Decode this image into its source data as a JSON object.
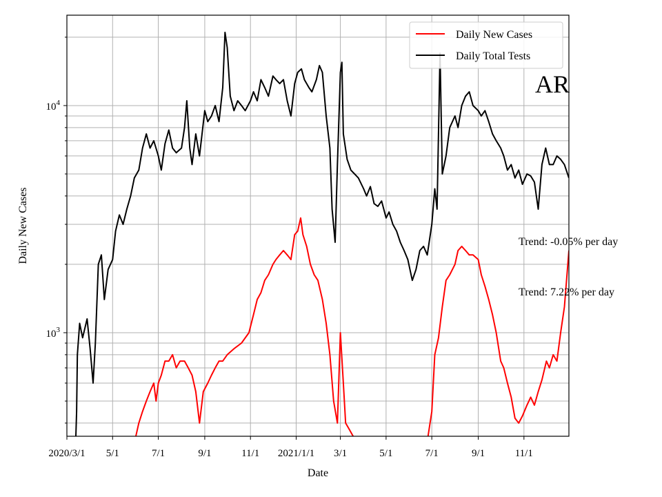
{
  "chart_data": {
    "type": "line",
    "xlabel": "Date",
    "ylabel": "Daily New Cases",
    "y_scale": "log",
    "ylim": [
      350,
      25000
    ],
    "xlim": [
      "2020-03-01",
      "2021-12-31"
    ],
    "grid": true,
    "legend_position": "top-right",
    "x_tick_labels": [
      {
        "date": "2020-03-01",
        "label": "2020/3/1"
      },
      {
        "date": "2020-05-01",
        "label": "5/1"
      },
      {
        "date": "2020-07-01",
        "label": "7/1"
      },
      {
        "date": "2020-09-01",
        "label": "9/1"
      },
      {
        "date": "2020-11-01",
        "label": "11/1"
      },
      {
        "date": "2021-01-01",
        "label": "2021/1/1"
      },
      {
        "date": "2021-03-01",
        "label": "3/1"
      },
      {
        "date": "2021-05-01",
        "label": "5/1"
      },
      {
        "date": "2021-07-01",
        "label": "7/1"
      },
      {
        "date": "2021-09-01",
        "label": "9/1"
      },
      {
        "date": "2021-11-01",
        "label": "11/1"
      }
    ],
    "y_tick_labels": [
      {
        "value": 1000,
        "base": "10",
        "exp": "3"
      },
      {
        "value": 10000,
        "base": "10",
        "exp": "4"
      }
    ],
    "annotations": {
      "state": "AR",
      "trend_tests": "Trend: -0.05% per day",
      "trend_cases": "Trend: 7.22% per day"
    },
    "series": [
      {
        "name": "Daily New Cases",
        "color": "#ff0000",
        "points": [
          [
            "2020-06-01",
            350
          ],
          [
            "2020-06-05",
            400
          ],
          [
            "2020-06-10",
            450
          ],
          [
            "2020-06-15",
            500
          ],
          [
            "2020-06-20",
            550
          ],
          [
            "2020-06-25",
            600
          ],
          [
            "2020-06-28",
            500
          ],
          [
            "2020-07-01",
            600
          ],
          [
            "2020-07-05",
            650
          ],
          [
            "2020-07-10",
            750
          ],
          [
            "2020-07-15",
            750
          ],
          [
            "2020-07-20",
            800
          ],
          [
            "2020-07-25",
            700
          ],
          [
            "2020-07-30",
            750
          ],
          [
            "2020-08-05",
            750
          ],
          [
            "2020-08-10",
            700
          ],
          [
            "2020-08-15",
            650
          ],
          [
            "2020-08-20",
            550
          ],
          [
            "2020-08-25",
            400
          ],
          [
            "2020-08-30",
            550
          ],
          [
            "2020-09-05",
            600
          ],
          [
            "2020-09-10",
            650
          ],
          [
            "2020-09-15",
            700
          ],
          [
            "2020-09-20",
            750
          ],
          [
            "2020-09-25",
            750
          ],
          [
            "2020-10-01",
            800
          ],
          [
            "2020-10-10",
            850
          ],
          [
            "2020-10-20",
            900
          ],
          [
            "2020-10-30",
            1000
          ],
          [
            "2020-11-05",
            1200
          ],
          [
            "2020-11-10",
            1400
          ],
          [
            "2020-11-15",
            1500
          ],
          [
            "2020-11-20",
            1700
          ],
          [
            "2020-11-25",
            1800
          ],
          [
            "2020-12-01",
            2000
          ],
          [
            "2020-12-05",
            2100
          ],
          [
            "2020-12-10",
            2200
          ],
          [
            "2020-12-15",
            2300
          ],
          [
            "2020-12-20",
            2200
          ],
          [
            "2020-12-25",
            2100
          ],
          [
            "2020-12-30",
            2700
          ],
          [
            "2021-01-03",
            2800
          ],
          [
            "2021-01-07",
            3200
          ],
          [
            "2021-01-10",
            2700
          ],
          [
            "2021-01-15",
            2400
          ],
          [
            "2021-01-20",
            2000
          ],
          [
            "2021-01-25",
            1800
          ],
          [
            "2021-01-30",
            1700
          ],
          [
            "2021-02-05",
            1400
          ],
          [
            "2021-02-10",
            1100
          ],
          [
            "2021-02-15",
            800
          ],
          [
            "2021-02-20",
            500
          ],
          [
            "2021-02-25",
            400
          ],
          [
            "2021-03-01",
            1000
          ],
          [
            "2021-03-05",
            600
          ],
          [
            "2021-03-08",
            400
          ],
          [
            "2021-03-12",
            380
          ],
          [
            "2021-03-18",
            350
          ],
          null,
          [
            "2021-06-26",
            350
          ],
          [
            "2021-07-01",
            450
          ],
          [
            "2021-07-05",
            800
          ],
          [
            "2021-07-10",
            950
          ],
          [
            "2021-07-15",
            1300
          ],
          [
            "2021-07-20",
            1700
          ],
          [
            "2021-07-25",
            1800
          ],
          [
            "2021-08-01",
            2000
          ],
          [
            "2021-08-05",
            2300
          ],
          [
            "2021-08-10",
            2400
          ],
          [
            "2021-08-15",
            2300
          ],
          [
            "2021-08-20",
            2200
          ],
          [
            "2021-08-25",
            2200
          ],
          [
            "2021-09-01",
            2100
          ],
          [
            "2021-09-05",
            1800
          ],
          [
            "2021-09-10",
            1600
          ],
          [
            "2021-09-15",
            1400
          ],
          [
            "2021-09-20",
            1200
          ],
          [
            "2021-09-25",
            1000
          ],
          [
            "2021-10-01",
            750
          ],
          [
            "2021-10-05",
            700
          ],
          [
            "2021-10-10",
            600
          ],
          [
            "2021-10-15",
            520
          ],
          [
            "2021-10-20",
            420
          ],
          [
            "2021-10-25",
            400
          ],
          [
            "2021-10-30",
            430
          ],
          [
            "2021-11-05",
            480
          ],
          [
            "2021-11-10",
            520
          ],
          [
            "2021-11-15",
            480
          ],
          [
            "2021-11-20",
            550
          ],
          [
            "2021-11-25",
            620
          ],
          [
            "2021-12-01",
            750
          ],
          [
            "2021-12-05",
            700
          ],
          [
            "2021-12-10",
            800
          ],
          [
            "2021-12-15",
            750
          ],
          [
            "2021-12-20",
            1000
          ],
          [
            "2021-12-25",
            1300
          ],
          [
            "2021-12-31",
            2300
          ]
        ]
      },
      {
        "name": "Daily Total Tests",
        "color": "#000000",
        "points": [
          [
            "2020-03-13",
            350
          ],
          [
            "2020-03-14",
            450
          ],
          [
            "2020-03-15",
            800
          ],
          [
            "2020-03-18",
            1100
          ],
          [
            "2020-03-22",
            950
          ],
          [
            "2020-03-28",
            1150
          ],
          [
            "2020-04-01",
            850
          ],
          [
            "2020-04-05",
            600
          ],
          [
            "2020-04-08",
            900
          ],
          [
            "2020-04-12",
            2000
          ],
          [
            "2020-04-16",
            2200
          ],
          [
            "2020-04-20",
            1400
          ],
          [
            "2020-04-25",
            1900
          ],
          [
            "2020-05-01",
            2100
          ],
          [
            "2020-05-05",
            2800
          ],
          [
            "2020-05-10",
            3300
          ],
          [
            "2020-05-15",
            3000
          ],
          [
            "2020-05-20",
            3500
          ],
          [
            "2020-05-25",
            4000
          ],
          [
            "2020-05-30",
            4800
          ],
          [
            "2020-06-05",
            5200
          ],
          [
            "2020-06-10",
            6500
          ],
          [
            "2020-06-15",
            7500
          ],
          [
            "2020-06-20",
            6500
          ],
          [
            "2020-06-25",
            7000
          ],
          [
            "2020-07-01",
            6000
          ],
          [
            "2020-07-05",
            5200
          ],
          [
            "2020-07-10",
            6800
          ],
          [
            "2020-07-15",
            7800
          ],
          [
            "2020-07-20",
            6500
          ],
          [
            "2020-07-25",
            6200
          ],
          [
            "2020-08-01",
            6500
          ],
          [
            "2020-08-05",
            8000
          ],
          [
            "2020-08-08",
            10500
          ],
          [
            "2020-08-12",
            6500
          ],
          [
            "2020-08-15",
            5500
          ],
          [
            "2020-08-20",
            7500
          ],
          [
            "2020-08-25",
            6000
          ],
          [
            "2020-09-01",
            9500
          ],
          [
            "2020-09-05",
            8500
          ],
          [
            "2020-09-10",
            9000
          ],
          [
            "2020-09-15",
            10000
          ],
          [
            "2020-09-20",
            8500
          ],
          [
            "2020-09-25",
            12000
          ],
          [
            "2020-09-28",
            21000
          ],
          [
            "2020-10-01",
            18000
          ],
          [
            "2020-10-05",
            11000
          ],
          [
            "2020-10-10",
            9500
          ],
          [
            "2020-10-15",
            10500
          ],
          [
            "2020-10-20",
            10000
          ],
          [
            "2020-10-25",
            9500
          ],
          [
            "2020-11-01",
            10500
          ],
          [
            "2020-11-05",
            11500
          ],
          [
            "2020-11-10",
            10500
          ],
          [
            "2020-11-15",
            13000
          ],
          [
            "2020-11-20",
            12000
          ],
          [
            "2020-11-25",
            11000
          ],
          [
            "2020-12-01",
            13500
          ],
          [
            "2020-12-05",
            13000
          ],
          [
            "2020-12-10",
            12500
          ],
          [
            "2020-12-15",
            13000
          ],
          [
            "2020-12-20",
            10500
          ],
          [
            "2020-12-25",
            9000
          ],
          [
            "2020-12-30",
            12500
          ],
          [
            "2021-01-03",
            14000
          ],
          [
            "2021-01-08",
            14500
          ],
          [
            "2021-01-12",
            13000
          ],
          [
            "2021-01-18",
            12000
          ],
          [
            "2021-01-22",
            11500
          ],
          [
            "2021-01-28",
            13000
          ],
          [
            "2021-02-01",
            15000
          ],
          [
            "2021-02-05",
            14000
          ],
          [
            "2021-02-10",
            9000
          ],
          [
            "2021-02-15",
            6500
          ],
          [
            "2021-02-18",
            3500
          ],
          [
            "2021-02-22",
            2500
          ],
          [
            "2021-02-25",
            5500
          ],
          [
            "2021-03-01",
            14000
          ],
          [
            "2021-03-03",
            15500
          ],
          [
            "2021-03-05",
            7500
          ],
          [
            "2021-03-10",
            5800
          ],
          [
            "2021-03-15",
            5200
          ],
          [
            "2021-03-20",
            5000
          ],
          [
            "2021-03-25",
            4800
          ],
          [
            "2021-04-01",
            4300
          ],
          [
            "2021-04-05",
            4000
          ],
          [
            "2021-04-10",
            4400
          ],
          [
            "2021-04-15",
            3700
          ],
          [
            "2021-04-20",
            3600
          ],
          [
            "2021-04-25",
            3800
          ],
          [
            "2021-05-01",
            3200
          ],
          [
            "2021-05-05",
            3400
          ],
          [
            "2021-05-10",
            3000
          ],
          [
            "2021-05-15",
            2800
          ],
          [
            "2021-05-20",
            2500
          ],
          [
            "2021-05-25",
            2300
          ],
          [
            "2021-05-30",
            2100
          ],
          [
            "2021-06-05",
            1700
          ],
          [
            "2021-06-10",
            1900
          ],
          [
            "2021-06-15",
            2300
          ],
          [
            "2021-06-20",
            2400
          ],
          [
            "2021-06-25",
            2200
          ],
          [
            "2021-07-01",
            3000
          ],
          [
            "2021-07-05",
            4300
          ],
          [
            "2021-07-08",
            3500
          ],
          [
            "2021-07-12",
            17000
          ],
          [
            "2021-07-15",
            5000
          ],
          [
            "2021-07-20",
            6000
          ],
          [
            "2021-07-25",
            8000
          ],
          [
            "2021-08-01",
            9000
          ],
          [
            "2021-08-05",
            8000
          ],
          [
            "2021-08-10",
            10000
          ],
          [
            "2021-08-15",
            11000
          ],
          [
            "2021-08-20",
            11500
          ],
          [
            "2021-08-25",
            10000
          ],
          [
            "2021-09-01",
            9500
          ],
          [
            "2021-09-05",
            9000
          ],
          [
            "2021-09-10",
            9500
          ],
          [
            "2021-09-15",
            8500
          ],
          [
            "2021-09-20",
            7500
          ],
          [
            "2021-09-25",
            7000
          ],
          [
            "2021-10-01",
            6500
          ],
          [
            "2021-10-05",
            6000
          ],
          [
            "2021-10-10",
            5200
          ],
          [
            "2021-10-15",
            5500
          ],
          [
            "2021-10-20",
            4800
          ],
          [
            "2021-10-25",
            5200
          ],
          [
            "2021-10-30",
            4500
          ],
          [
            "2021-11-05",
            5000
          ],
          [
            "2021-11-10",
            4900
          ],
          [
            "2021-11-15",
            4600
          ],
          [
            "2021-11-20",
            3500
          ],
          [
            "2021-11-25",
            5500
          ],
          [
            "2021-11-30",
            6500
          ],
          [
            "2021-12-05",
            5500
          ],
          [
            "2021-12-10",
            5500
          ],
          [
            "2021-12-15",
            6000
          ],
          [
            "2021-12-20",
            5800
          ],
          [
            "2021-12-25",
            5500
          ],
          [
            "2021-12-31",
            4800
          ]
        ]
      }
    ]
  }
}
